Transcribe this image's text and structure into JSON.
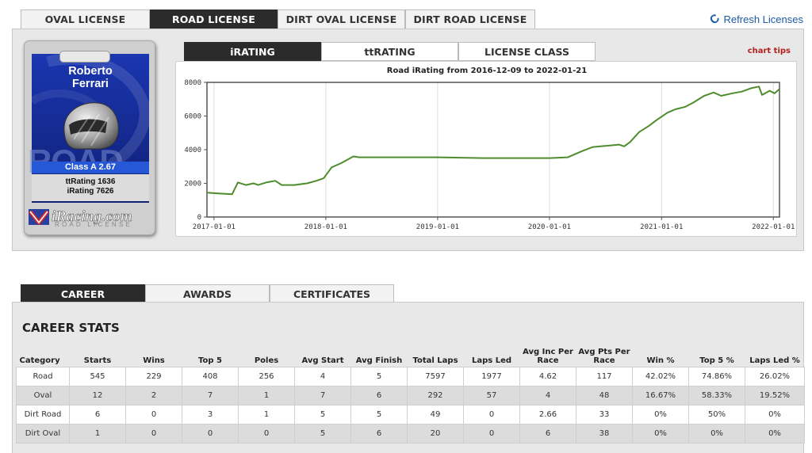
{
  "license_tabs": [
    "OVAL LICENSE",
    "ROAD LICENSE",
    "DIRT OVAL LICENSE",
    "DIRT ROAD LICENSE"
  ],
  "active_license_tab": "ROAD LICENSE",
  "refresh": {
    "icon": "refresh-icon",
    "label": "Refresh Licenses"
  },
  "card": {
    "first_name": "Roberto",
    "last_name": "Ferrari",
    "background_text": "ROAD",
    "class_text": "Class A 2.67",
    "ttrating_text": "ttRating 1636",
    "irating_text": "iRating 7626",
    "logo_text": "iRacing.com",
    "logo_subtext": "ROAD LICENSE",
    "colors": {
      "card_blue": "#1a36b0",
      "class_band": "#2557d6"
    }
  },
  "chart_tabs": [
    "iRATING",
    "ttRATING",
    "LICENSE CLASS"
  ],
  "active_chart_tab": "iRATING",
  "chart_tips": "chart tips",
  "chart_data": {
    "type": "line",
    "title": "Road iRating from 2016-12-09 to 2022-01-21",
    "xlabel": "",
    "ylabel": "",
    "x_ticks": [
      "2017-01-01",
      "2018-01-01",
      "2019-01-01",
      "2020-01-01",
      "2021-01-01",
      "2022-01-01"
    ],
    "y_ticks": [
      0,
      2000,
      4000,
      6000,
      8000
    ],
    "xlim": [
      "2016-12-09",
      "2022-01-21"
    ],
    "ylim": [
      0,
      8000
    ],
    "grid": "vertical",
    "series_color": "#4e8c2e",
    "series": [
      {
        "values": [
          [
            "2016-12-09",
            1450
          ],
          [
            "2017-01-15",
            1400
          ],
          [
            "2017-03-01",
            1350
          ],
          [
            "2017-03-20",
            2050
          ],
          [
            "2017-04-15",
            1900
          ],
          [
            "2017-05-10",
            2000
          ],
          [
            "2017-05-25",
            1900
          ],
          [
            "2017-06-20",
            2050
          ],
          [
            "2017-07-20",
            2150
          ],
          [
            "2017-08-10",
            1900
          ],
          [
            "2017-09-20",
            1900
          ],
          [
            "2017-11-01",
            2000
          ],
          [
            "2017-12-01",
            2150
          ],
          [
            "2017-12-25",
            2300
          ],
          [
            "2018-01-20",
            2950
          ],
          [
            "2018-02-20",
            3200
          ],
          [
            "2018-04-01",
            3600
          ],
          [
            "2018-04-20",
            3550
          ],
          [
            "2019-01-01",
            3550
          ],
          [
            "2019-06-01",
            3500
          ],
          [
            "2020-01-01",
            3500
          ],
          [
            "2020-03-01",
            3550
          ],
          [
            "2020-04-15",
            3900
          ],
          [
            "2020-05-20",
            4150
          ],
          [
            "2020-06-15",
            4200
          ],
          [
            "2020-08-15",
            4300
          ],
          [
            "2020-09-01",
            4200
          ],
          [
            "2020-09-20",
            4450
          ],
          [
            "2020-10-20",
            5050
          ],
          [
            "2020-11-20",
            5400
          ],
          [
            "2020-12-15",
            5750
          ],
          [
            "2021-01-20",
            6200
          ],
          [
            "2021-02-15",
            6400
          ],
          [
            "2021-03-20",
            6550
          ],
          [
            "2021-04-15",
            6800
          ],
          [
            "2021-05-20",
            7200
          ],
          [
            "2021-06-20",
            7400
          ],
          [
            "2021-07-15",
            7200
          ],
          [
            "2021-08-20",
            7350
          ],
          [
            "2021-09-20",
            7450
          ],
          [
            "2021-10-20",
            7650
          ],
          [
            "2021-11-15",
            7750
          ],
          [
            "2021-11-25",
            7250
          ],
          [
            "2021-12-20",
            7500
          ],
          [
            "2022-01-05",
            7350
          ],
          [
            "2022-01-21",
            7600
          ]
        ]
      }
    ]
  },
  "career_tabs": [
    "CAREER",
    "AWARDS",
    "CERTIFICATES"
  ],
  "active_career_tab": "CAREER",
  "career_heading": "CAREER STATS",
  "stats_table": {
    "headers": [
      "Category",
      "Starts",
      "Wins",
      "Top 5",
      "Poles",
      "Avg Start",
      "Avg Finish",
      "Total Laps",
      "Laps Led",
      "Avg Inc Per Race",
      "Avg Pts Per Race",
      "Win %",
      "Top 5 %",
      "Laps Led %"
    ],
    "rows": [
      [
        "Road",
        "545",
        "229",
        "408",
        "256",
        "4",
        "5",
        "7597",
        "1977",
        "4.62",
        "117",
        "42.02%",
        "74.86%",
        "26.02%"
      ],
      [
        "Oval",
        "12",
        "2",
        "7",
        "1",
        "7",
        "6",
        "292",
        "57",
        "4",
        "48",
        "16.67%",
        "58.33%",
        "19.52%"
      ],
      [
        "Dirt Road",
        "6",
        "0",
        "3",
        "1",
        "5",
        "5",
        "49",
        "0",
        "2.66",
        "33",
        "0%",
        "50%",
        "0%"
      ],
      [
        "Dirt Oval",
        "1",
        "0",
        "0",
        "0",
        "5",
        "6",
        "20",
        "0",
        "6",
        "38",
        "0%",
        "0%",
        "0%"
      ]
    ]
  }
}
